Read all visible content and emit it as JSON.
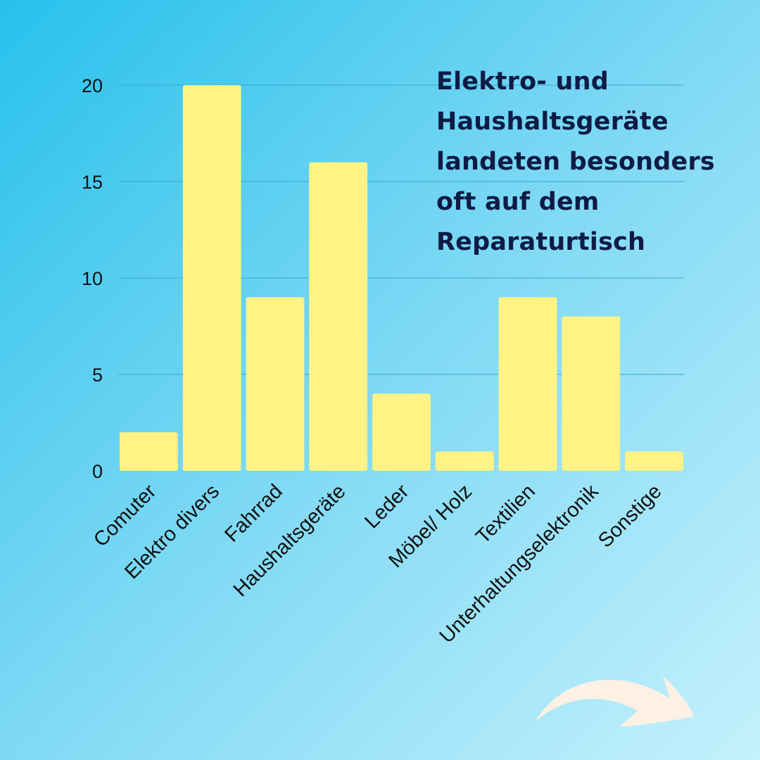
{
  "chart_data": {
    "type": "bar",
    "title_lines": [
      "Elektro- und",
      "Haushaltsgeräte",
      "landeten besonders",
      "oft auf dem",
      "Reparaturtisch"
    ],
    "xlabel": "",
    "ylabel": "",
    "categories": [
      "Comuter",
      "Elektro divers",
      "Fahrrad",
      "Haushaltsgeräte",
      "Leder",
      "Möbel/ Holz",
      "Textilien",
      "Unterhaltungselektronik",
      "Sonstige"
    ],
    "values": [
      2,
      20,
      9,
      16,
      4,
      1,
      9,
      8,
      1
    ],
    "ylim": [
      0,
      20
    ],
    "yticks": [
      0,
      5,
      10,
      15,
      20
    ],
    "grid": true,
    "legend": "none"
  },
  "colors": {
    "bar": "#fef384",
    "gridline": "#3aa7c9",
    "title": "#0f1b45",
    "arrow": "#fdf1e4"
  },
  "decorations": {
    "arrow_icon": "curved-arrow-right-icon"
  }
}
